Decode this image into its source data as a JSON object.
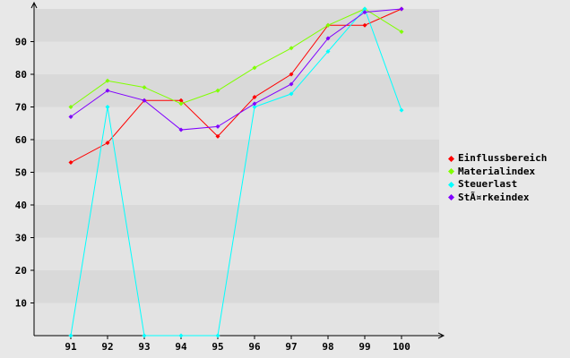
{
  "chart_data": {
    "type": "line",
    "x": [
      91,
      92,
      93,
      94,
      95,
      96,
      97,
      98,
      99,
      100
    ],
    "categories": [
      "91",
      "92",
      "93",
      "94",
      "95",
      "96",
      "97",
      "98",
      "99",
      "100"
    ],
    "yticks": [
      "10",
      "20",
      "30",
      "40",
      "50",
      "60",
      "70",
      "80",
      "90"
    ],
    "ylim": [
      0,
      100
    ],
    "grid": "alternating horizontal bands",
    "legend_position": "right",
    "series": [
      {
        "name": "Einflussbereich",
        "color": "#ff0000",
        "values": [
          53,
          59,
          72,
          72,
          61,
          73,
          80,
          95,
          95,
          100
        ]
      },
      {
        "name": "Materialindex",
        "color": "#80ff00",
        "values": [
          70,
          78,
          76,
          71,
          75,
          82,
          88,
          95,
          100,
          93
        ]
      },
      {
        "name": "Steuerlast",
        "color": "#00ffff",
        "values": [
          0,
          70,
          0,
          0,
          0,
          70,
          74,
          87,
          100,
          69
        ]
      },
      {
        "name": "StÃ¤rkeindex",
        "color": "#8000ff",
        "values": [
          67,
          75,
          72,
          63,
          64,
          71,
          77,
          91,
          99,
          100
        ]
      }
    ]
  }
}
